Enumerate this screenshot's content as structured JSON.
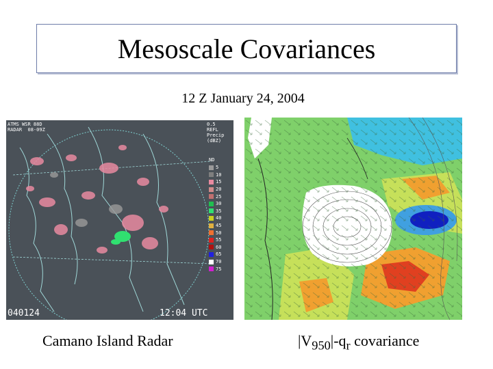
{
  "slide": {
    "title": "Mesoscale Covariances",
    "subtitle": "12 Z January 24, 2004",
    "left_caption": "Camano Island Radar",
    "right_caption": {
      "pre": "|V",
      "sub1": "950",
      "mid": "|-q",
      "sub2": "r",
      "post": " covariance"
    }
  },
  "radar": {
    "header_lines": [
      "ATMS WSR 88D",
      "RADAR  08-09Z"
    ],
    "product_lines": [
      "0.5",
      "REFL",
      "Precip",
      "(dBZ)"
    ],
    "date_label": "040124",
    "time_label": "12:04 UTC",
    "legend_nd": "ND",
    "legend": [
      {
        "label": "5",
        "color": "#9a9a9a"
      },
      {
        "label": "10",
        "color": "#7f7f7f"
      },
      {
        "label": "15",
        "color": "#e88aa0"
      },
      {
        "label": "20",
        "color": "#d08a8a"
      },
      {
        "label": "25",
        "color": "#c07070"
      },
      {
        "label": "30",
        "color": "#20c050"
      },
      {
        "label": "35",
        "color": "#30e070"
      },
      {
        "label": "40",
        "color": "#c8d020"
      },
      {
        "label": "45",
        "color": "#e0b040"
      },
      {
        "label": "50",
        "color": "#f07030"
      },
      {
        "label": "55",
        "color": "#e02020"
      },
      {
        "label": "60",
        "color": "#b01010"
      },
      {
        "label": "65",
        "color": "#2020e0"
      },
      {
        "label": "70",
        "color": "#ffffff"
      },
      {
        "label": "75",
        "color": "#d020d0"
      }
    ]
  },
  "covariance_colors": {
    "positive_low": "#7fd06a",
    "positive_mid": "#c6e05a",
    "positive_high": "#f0a030",
    "positive_max": "#e04020",
    "negative_low": "#40c0e0",
    "negative_max": "#1020c0",
    "neutral": "#ffffff"
  }
}
